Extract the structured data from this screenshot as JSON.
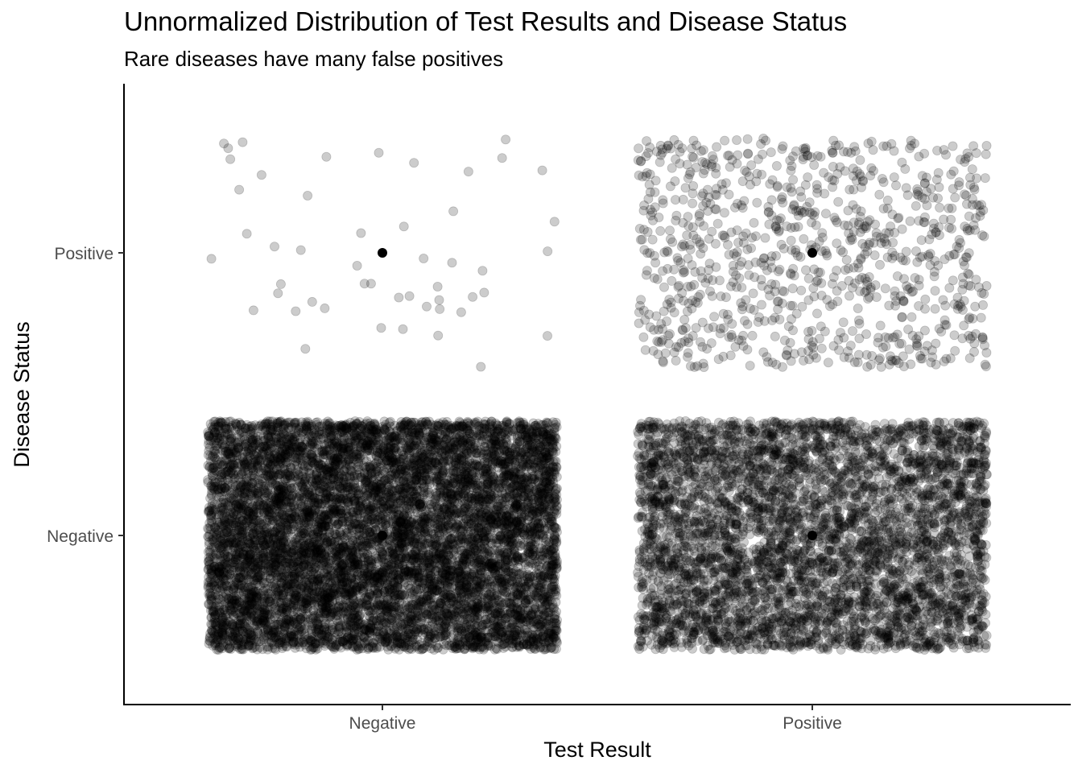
{
  "chart_data": {
    "type": "scatter",
    "title": "Unnormalized Distribution of Test Results and Disease Status",
    "subtitle": "Rare diseases have many false positives",
    "xlabel": "Test Result",
    "ylabel": "Disease Status",
    "x_categories": [
      "Negative",
      "Positive"
    ],
    "y_categories": [
      "Negative",
      "Positive"
    ],
    "grid": false,
    "legend": "none",
    "point_color": "#000000",
    "jitter_alpha": 0.2,
    "groups": [
      {
        "test_result": "Negative",
        "disease_status": "Negative",
        "count": 9000
      },
      {
        "test_result": "Negative",
        "disease_status": "Positive",
        "count": 50
      },
      {
        "test_result": "Positive",
        "disease_status": "Negative",
        "count": 5000
      },
      {
        "test_result": "Positive",
        "disease_status": "Positive",
        "count": 950
      }
    ]
  }
}
